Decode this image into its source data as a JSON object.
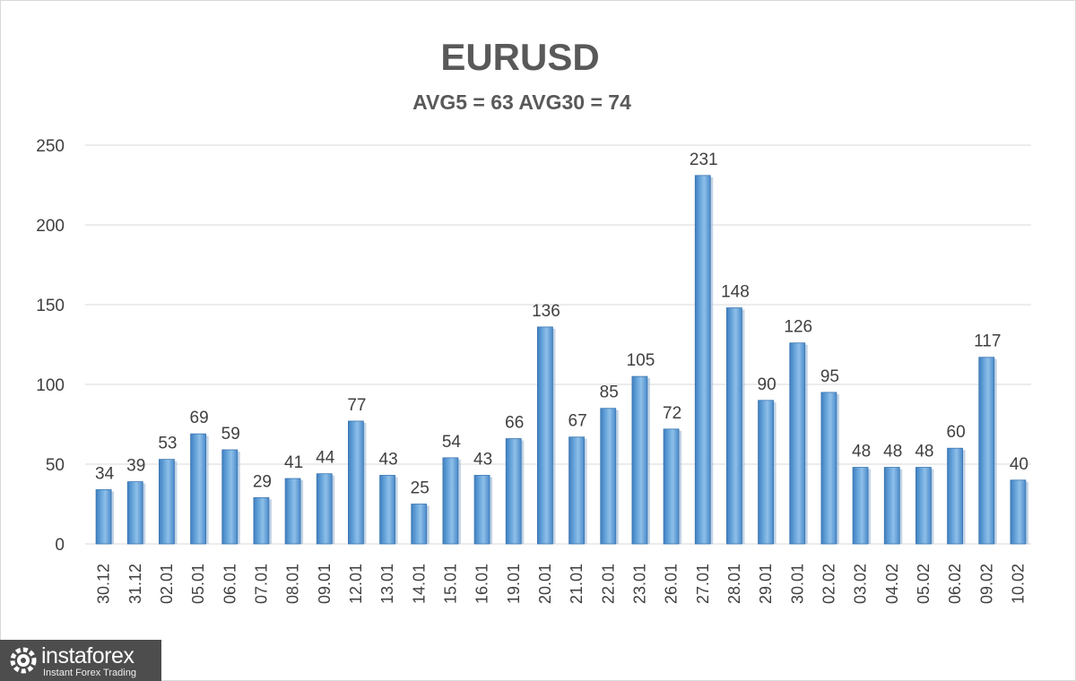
{
  "chart_data": {
    "type": "bar",
    "title": "EURUSD",
    "subtitle": "AVG5 = 63 AVG30 = 74",
    "xlabel": "",
    "ylabel": "",
    "ylim": [
      0,
      250
    ],
    "yticks": [
      0,
      50,
      100,
      150,
      200,
      250
    ],
    "grid": true,
    "bar_color": "#5b9bd5",
    "categories": [
      "30.12",
      "31.12",
      "02.01",
      "05.01",
      "06.01",
      "07.01",
      "08.01",
      "09.01",
      "12.01",
      "13.01",
      "14.01",
      "15.01",
      "16.01",
      "19.01",
      "20.01",
      "21.01",
      "22.01",
      "23.01",
      "26.01",
      "27.01",
      "28.01",
      "29.01",
      "30.01",
      "02.02",
      "03.02",
      "04.02",
      "05.02",
      "06.02",
      "09.02",
      "10.02"
    ],
    "values": [
      34,
      39,
      53,
      69,
      59,
      29,
      41,
      44,
      77,
      43,
      25,
      54,
      43,
      66,
      136,
      67,
      85,
      105,
      72,
      231,
      148,
      90,
      126,
      95,
      48,
      48,
      48,
      60,
      117,
      40
    ]
  },
  "watermark": {
    "name": "instaforex",
    "tagline": "Instant Forex Trading",
    "icon": "gear-logo-icon"
  }
}
